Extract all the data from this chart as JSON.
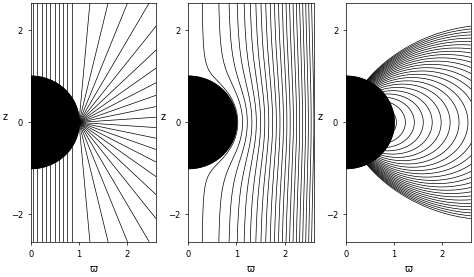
{
  "figsize": [
    4.74,
    2.77
  ],
  "dpi": 100,
  "xlim": [
    0.0,
    2.6
  ],
  "ylim": [
    -2.6,
    2.6
  ],
  "xticks": [
    0.0,
    1.0,
    2.0
  ],
  "yticks": [
    -2.0,
    0.0,
    2.0
  ],
  "xlabel": "ϖ",
  "ylabel": "z",
  "r_bh": 1.0,
  "bg": "#ffffff",
  "lc": "#000000",
  "lw": 0.5,
  "lw_bh": 1.2
}
